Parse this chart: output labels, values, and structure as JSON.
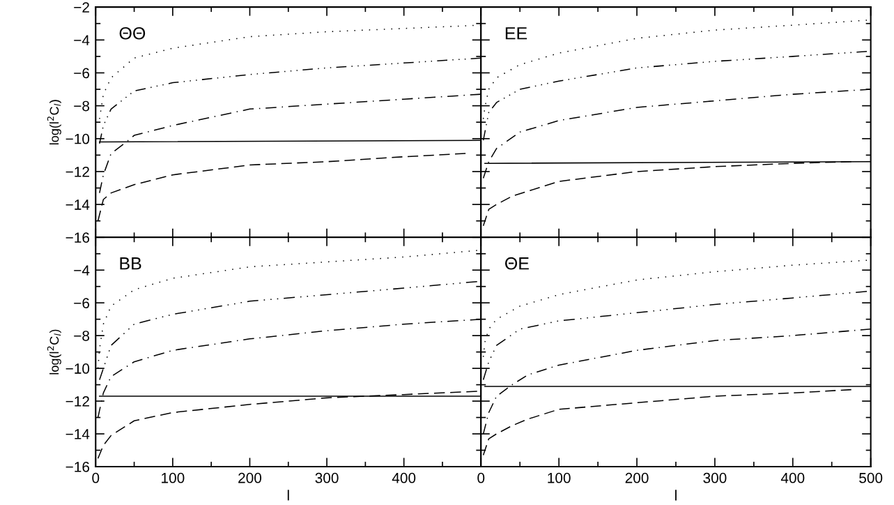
{
  "chart_data": [
    {
      "type": "line",
      "annotations": [
        "ΘΘ"
      ],
      "ylabel": "log(l$^{2}$C$_{l}$)",
      "xlim": [
        0,
        500
      ],
      "ylim": [
        -16,
        -2
      ],
      "xticks": [
        0,
        100,
        200,
        300,
        400,
        500
      ],
      "yticks": [
        -16,
        -14,
        -12,
        -10,
        -8,
        -6,
        -4,
        -2
      ],
      "tick_labels": "y",
      "series": [
        {
          "color": "#000000",
          "line_style": "dotted",
          "x": [
            5,
            10,
            20,
            50,
            100,
            200,
            300,
            400,
            500
          ],
          "values": [
            -8.8,
            -7.3,
            -6.3,
            -5.1,
            -4.5,
            -3.8,
            -3.5,
            -3.3,
            -3.1
          ]
        },
        {
          "color": "#000000",
          "line_style": "dashdotdotdot",
          "x": [
            5,
            10,
            20,
            50,
            100,
            200,
            300,
            400,
            500
          ],
          "values": [
            -10.3,
            -9.2,
            -8.2,
            -7.1,
            -6.6,
            -6.1,
            -5.7,
            -5.4,
            -5.1
          ]
        },
        {
          "color": "#000000",
          "line_style": "dashdot",
          "x": [
            5,
            10,
            20,
            40,
            50,
            100,
            200,
            300,
            400,
            500
          ],
          "values": [
            -13.3,
            -12.2,
            -10.9,
            -10.2,
            -9.8,
            -9.2,
            -8.2,
            -7.9,
            -7.6,
            -7.3
          ]
        },
        {
          "color": "#000000",
          "line_style": "solid",
          "x": [
            5,
            500
          ],
          "values": [
            -10.2,
            -10.1
          ]
        },
        {
          "color": "#000000",
          "line_style": "dashed",
          "x": [
            3,
            10,
            20,
            50,
            100,
            200,
            300,
            400,
            480
          ],
          "values": [
            -15.0,
            -13.7,
            -13.3,
            -12.8,
            -12.2,
            -11.6,
            -11.4,
            -11.1,
            -10.9
          ]
        }
      ]
    },
    {
      "type": "line",
      "annotations": [
        "EE"
      ],
      "xlim": [
        0,
        500
      ],
      "ylim": [
        -16,
        -2
      ],
      "xticks": [
        0,
        100,
        200,
        300,
        400,
        500
      ],
      "yticks": [
        -16,
        -14,
        -12,
        -10,
        -8,
        -6,
        -4,
        -2
      ],
      "tick_labels": false,
      "series": [
        {
          "color": "#000000",
          "line_style": "dotted",
          "x": [
            3,
            5,
            10,
            20,
            50,
            100,
            200,
            300,
            400,
            495
          ],
          "values": [
            -8.8,
            -8.1,
            -7.0,
            -6.3,
            -5.5,
            -4.8,
            -3.9,
            -3.4,
            -3.1,
            -2.8
          ]
        },
        {
          "color": "#000000",
          "line_style": "dashdotdotdot",
          "x": [
            3,
            10,
            20,
            50,
            100,
            200,
            300,
            400,
            495
          ],
          "values": [
            -10.1,
            -8.4,
            -7.8,
            -7.0,
            -6.5,
            -5.7,
            -5.3,
            -5.0,
            -4.7
          ]
        },
        {
          "color": "#000000",
          "line_style": "dashdot",
          "x": [
            3,
            10,
            20,
            50,
            100,
            200,
            300,
            400,
            500
          ],
          "values": [
            -12.4,
            -11.4,
            -10.6,
            -9.6,
            -8.9,
            -8.1,
            -7.7,
            -7.3,
            -7.0
          ]
        },
        {
          "color": "#000000",
          "line_style": "solid",
          "x": [
            5,
            500
          ],
          "values": [
            -11.5,
            -11.4
          ]
        },
        {
          "color": "#000000",
          "line_style": "dashed",
          "x": [
            3,
            10,
            20,
            40,
            60,
            100,
            200,
            300,
            400,
            475
          ],
          "values": [
            -15.3,
            -14.3,
            -14.0,
            -13.5,
            -13.2,
            -12.6,
            -12.0,
            -11.7,
            -11.5,
            -11.4
          ]
        }
      ]
    },
    {
      "type": "line",
      "annotations": [
        "BB"
      ],
      "ylabel": "log(l$^{2}$C$_{l}$)",
      "xlabel": "l",
      "xlim": [
        0,
        500
      ],
      "ylim": [
        -16,
        -2
      ],
      "xticks": [
        0,
        100,
        200,
        300,
        400,
        {
          "value": 500,
          "label": null
        }
      ],
      "yticks": [
        -16,
        -14,
        -12,
        -10,
        -8,
        -6,
        -4,
        {
          "value": -2,
          "label": null
        }
      ],
      "series": [
        {
          "color": "#000000",
          "line_style": "dotted",
          "x": [
            3,
            5,
            10,
            20,
            50,
            100,
            200,
            300,
            400,
            495
          ],
          "values": [
            -10.0,
            -8.8,
            -7.3,
            -6.2,
            -5.2,
            -4.5,
            -3.8,
            -3.5,
            -3.2,
            -2.8
          ]
        },
        {
          "color": "#000000",
          "line_style": "dashdotdotdot",
          "x": [
            5,
            10,
            20,
            50,
            100,
            200,
            300,
            400,
            495
          ],
          "values": [
            -10.7,
            -10.0,
            -8.6,
            -7.3,
            -6.7,
            -5.9,
            -5.5,
            -5.1,
            -4.7
          ]
        },
        {
          "color": "#000000",
          "line_style": "dashdot",
          "x": [
            3,
            10,
            20,
            50,
            100,
            200,
            300,
            400,
            500
          ],
          "values": [
            -13.0,
            -11.5,
            -10.5,
            -9.6,
            -8.9,
            -8.2,
            -7.7,
            -7.3,
            -7.0
          ]
        },
        {
          "color": "#000000",
          "line_style": "solid",
          "x": [
            5,
            500
          ],
          "values": [
            -11.7,
            -11.7
          ]
        },
        {
          "color": "#000000",
          "line_style": "dashed",
          "x": [
            3,
            10,
            20,
            50,
            100,
            200,
            300,
            400,
            495
          ],
          "values": [
            -15.5,
            -14.7,
            -14.1,
            -13.2,
            -12.7,
            -12.2,
            -11.8,
            -11.6,
            -11.4
          ]
        }
      ]
    },
    {
      "type": "line",
      "annotations": [
        "ΘE"
      ],
      "xlabel": "l",
      "xlim": [
        0,
        500
      ],
      "ylim": [
        -16,
        -2
      ],
      "xticks": [
        0,
        100,
        200,
        300,
        400,
        500
      ],
      "yticks": [
        -16,
        -14,
        -12,
        -10,
        -8,
        -6,
        -4,
        -2
      ],
      "tick_labels": "x",
      "series": [
        {
          "color": "#000000",
          "line_style": "dotted",
          "x": [
            3,
            5,
            10,
            20,
            50,
            100,
            200,
            300,
            400,
            495
          ],
          "values": [
            -9.3,
            -8.4,
            -7.6,
            -7.0,
            -6.2,
            -5.5,
            -4.6,
            -4.1,
            -3.7,
            -3.4
          ]
        },
        {
          "color": "#000000",
          "line_style": "dashdotdotdot",
          "x": [
            3,
            10,
            20,
            50,
            100,
            200,
            300,
            400,
            495
          ],
          "values": [
            -10.7,
            -9.6,
            -8.6,
            -7.6,
            -7.1,
            -6.6,
            -6.1,
            -5.7,
            -5.3
          ]
        },
        {
          "color": "#000000",
          "line_style": "dashdot",
          "x": [
            3,
            10,
            20,
            40,
            60,
            100,
            200,
            300,
            400,
            500
          ],
          "values": [
            -14.0,
            -12.7,
            -11.7,
            -11.0,
            -10.4,
            -9.8,
            -8.9,
            -8.3,
            -8.0,
            -7.6
          ]
        },
        {
          "color": "#000000",
          "line_style": "solid",
          "x": [
            5,
            500
          ],
          "values": [
            -11.1,
            -11.1
          ]
        },
        {
          "color": "#000000",
          "line_style": "dashed",
          "x": [
            3,
            10,
            20,
            40,
            60,
            100,
            200,
            300,
            400,
            475
          ],
          "values": [
            -15.3,
            -14.3,
            -14.0,
            -13.5,
            -13.1,
            -12.5,
            -12.1,
            -11.7,
            -11.5,
            -11.3
          ]
        }
      ]
    }
  ]
}
